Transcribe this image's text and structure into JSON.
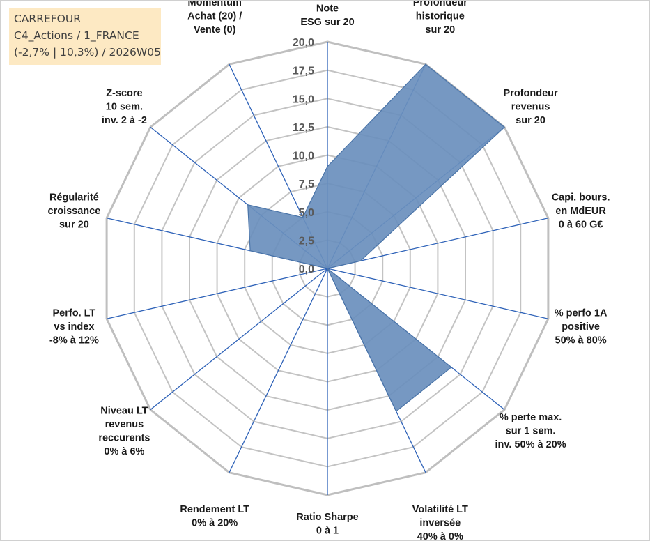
{
  "info_box": {
    "line1": "CARREFOUR",
    "line2": "C4_Actions / 1_FRANCE",
    "line3": "(-2,7% | 10,3%) / 2026W05"
  },
  "colors": {
    "fill": "#6a8fbd",
    "series_stroke": "#4a74a8",
    "spoke": "#2e62b8",
    "grid": "#c3c3c3",
    "outer_grid": "#bfbfbf",
    "info_box_bg": "#fde9c3"
  },
  "chart_data": {
    "type": "radar",
    "axes": [
      [
        "Note",
        "ESG sur 20"
      ],
      [
        "Profondeur",
        "historique",
        "sur 20"
      ],
      [
        "Profondeur",
        "revenus",
        "sur 20"
      ],
      [
        "Capi. bours.",
        "en MdEUR",
        "0 à 60 G€"
      ],
      [
        "% perfo 1A",
        "positive",
        "50% à 80%"
      ],
      [
        "% perte max.",
        "sur 1 sem.",
        "inv. 50% à 20%"
      ],
      [
        "Volatilité LT",
        "inversée",
        "40% à 0%"
      ],
      [
        "Ratio Sharpe",
        "0 à 1"
      ],
      [
        "Rendement LT",
        "0% à 20%"
      ],
      [
        "Niveau LT",
        "revenus",
        "reccurents",
        "0% à 6%"
      ],
      [
        "Perfo. LT",
        "vs index",
        "-8% à 12%"
      ],
      [
        "Régularité",
        "croissance",
        "sur 20"
      ],
      [
        "Z-score",
        "10 sem.",
        "inv. 2 à -2"
      ],
      [
        "Momentum",
        "Achat (20) /",
        "Vente (0)"
      ]
    ],
    "values": [
      9,
      20,
      20,
      3,
      0,
      14,
      14,
      0,
      0,
      0,
      0,
      7,
      9,
      5
    ],
    "range": [
      0,
      20
    ],
    "ticks": [
      "0,0",
      "2,5",
      "5,0",
      "7,5",
      "10,0",
      "12,5",
      "15,0",
      "17,5",
      "20,0"
    ],
    "grid": true,
    "legend": "none"
  }
}
